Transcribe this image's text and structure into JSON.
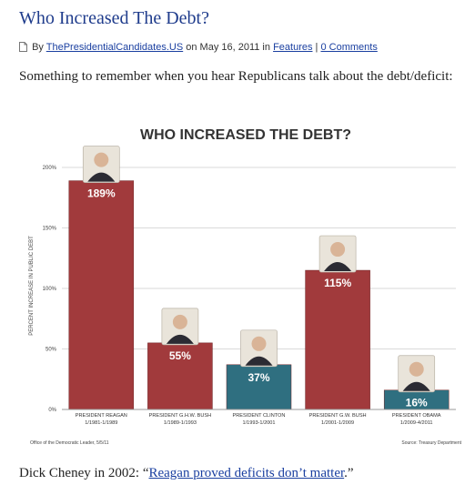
{
  "post": {
    "title": "Who Increased The Debt?",
    "meta_by": "By",
    "author": "ThePresidentialCandidates.US",
    "meta_on": "on May 16, 2011 in",
    "category": "Features",
    "separator": "|",
    "comments": "0 Comments",
    "intro": "Something to remember when you hear Republicans talk about the debt/deficit:",
    "footer_prefix": "Dick Cheney in 2002: “",
    "footer_link": "Reagan proved deficits don’t matter",
    "footer_suffix": ".”"
  },
  "colors": {
    "title": "#1f3c8c",
    "link": "#1a3fa0",
    "republican_bar": "#a13a3c",
    "democrat_bar": "#2f6f80"
  },
  "chart_data": {
    "type": "bar",
    "title": "WHO INCREASED THE DEBT?",
    "ylabel": "PERCENT INCREASE IN PUBLIC DEBT",
    "ylim": [
      0,
      200
    ],
    "yticks": [
      "0%",
      "50%",
      "100%",
      "150%",
      "200%"
    ],
    "ytick_values": [
      0,
      50,
      100,
      150,
      200
    ],
    "grid": true,
    "categories": [
      {
        "name": "PRESIDENT REAGAN",
        "years": "1/1981-1/1989",
        "party": "republican"
      },
      {
        "name": "PRESIDENT G.H.W. BUSH",
        "years": "1/1989-1/1993",
        "party": "republican"
      },
      {
        "name": "PRESIDENT CLINTON",
        "years": "1/1993-1/2001",
        "party": "democrat"
      },
      {
        "name": "PRESIDENT G.W. BUSH",
        "years": "1/2001-1/2009",
        "party": "republican"
      },
      {
        "name": "PRESIDENT OBAMA",
        "years": "1/2009-4/2011",
        "party": "democrat"
      }
    ],
    "values": [
      189,
      55,
      37,
      115,
      16
    ],
    "data_labels": [
      "189%",
      "55%",
      "37%",
      "115%",
      "16%"
    ],
    "source_left": "Office of the Democratic Leader, 5/5/11",
    "source_right": "Source: Treasury Department"
  }
}
